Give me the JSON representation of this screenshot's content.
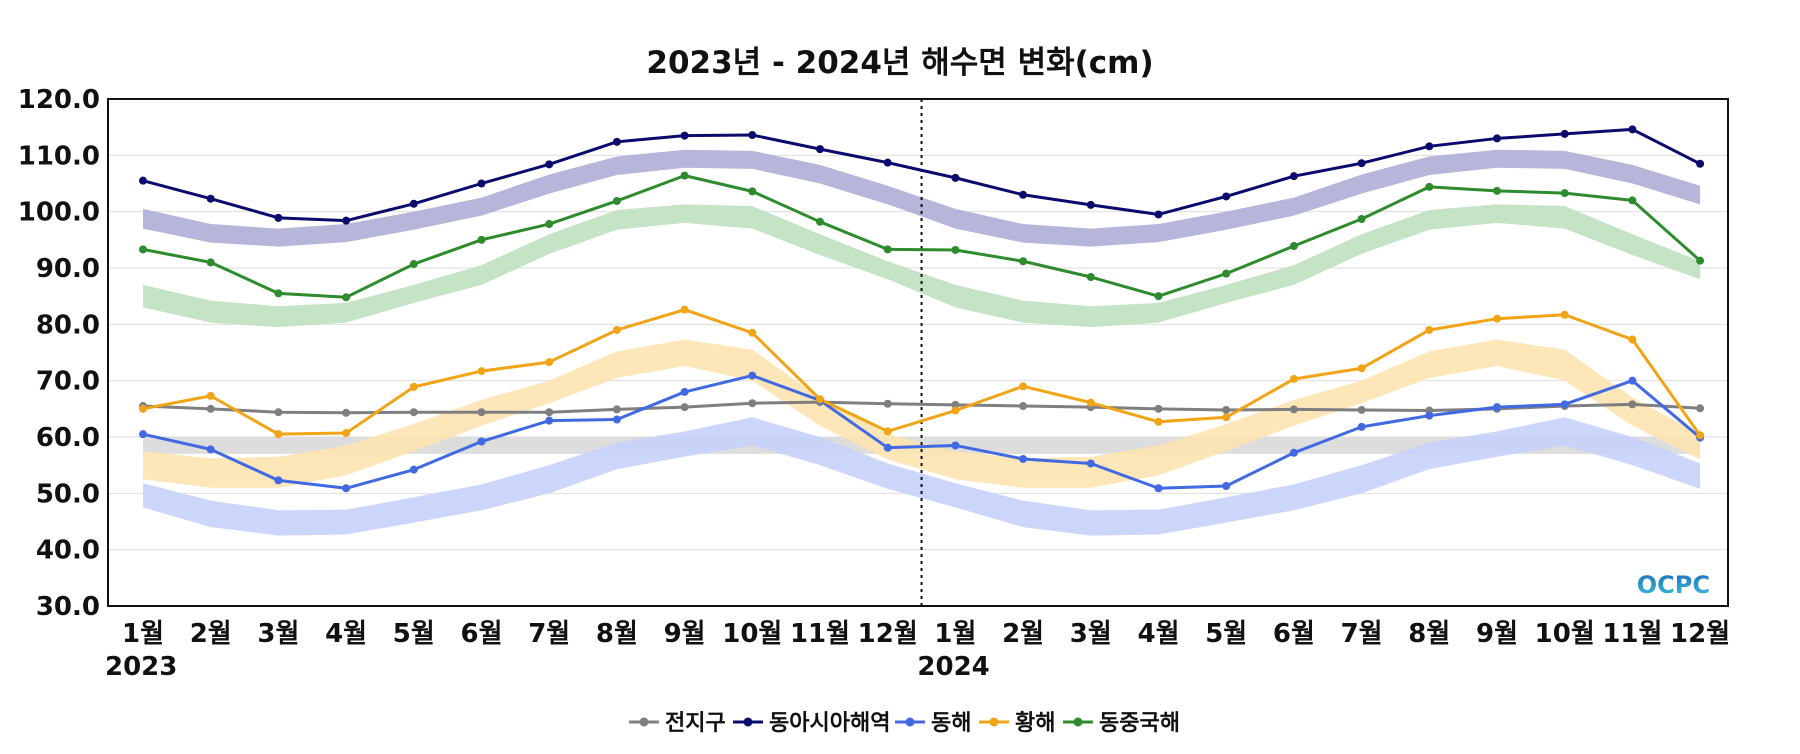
{
  "chart_data": {
    "type": "line",
    "title": "2023년 - 2024년 해수면 변화(cm)",
    "xlabel": "",
    "ylabel": "",
    "ylim": [
      30,
      120
    ],
    "yticks": [
      "30.0",
      "40.0",
      "50.0",
      "60.0",
      "70.0",
      "80.0",
      "90.0",
      "100.0",
      "110.0",
      "120.0"
    ],
    "categories": [
      "1월",
      "2월",
      "3월",
      "4월",
      "5월",
      "6월",
      "7월",
      "8월",
      "9월",
      "10월",
      "11월",
      "12월",
      "1월",
      "2월",
      "3월",
      "4월",
      "5월",
      "6월",
      "7월",
      "8월",
      "9월",
      "10월",
      "11월",
      "12월"
    ],
    "year_labels": [
      {
        "index": 0,
        "text": "2023"
      },
      {
        "index": 12,
        "text": "2024"
      }
    ],
    "divider_after_index": 11,
    "grid": true,
    "legend_position": "bottom-center",
    "series": [
      {
        "name": "전지구",
        "color": "#7f7f7f",
        "values": [
          65.5,
          65.0,
          64.4,
          64.3,
          64.4,
          64.4,
          64.4,
          64.9,
          65.3,
          66.0,
          66.2,
          65.9,
          65.7,
          65.5,
          65.3,
          65.0,
          64.8,
          64.9,
          64.8,
          64.7,
          65.0,
          65.5,
          65.8,
          65.1
        ],
        "band": {
          "color": "#d9d9d9",
          "lower": [
            57.0,
            57.0,
            57.0,
            57.0,
            57.0,
            57.0,
            57.0,
            57.0,
            57.0,
            57.0,
            57.0,
            57.0,
            57.0,
            57.0,
            57.0,
            57.0,
            57.0,
            57.0,
            57.0,
            57.0,
            57.0,
            57.0,
            57.0,
            57.0
          ],
          "upper": [
            60.0,
            60.0,
            60.0,
            60.0,
            60.0,
            60.0,
            60.0,
            60.0,
            60.0,
            60.0,
            60.0,
            60.0,
            60.0,
            60.0,
            60.0,
            60.0,
            60.0,
            60.0,
            60.0,
            60.0,
            60.0,
            60.0,
            60.0,
            60.0
          ]
        }
      },
      {
        "name": "동아시아해역",
        "color": "#0b0b6e",
        "values": [
          105.5,
          102.3,
          98.9,
          98.4,
          101.4,
          105.0,
          108.4,
          112.4,
          113.5,
          113.6,
          111.1,
          108.7,
          106.0,
          103.0,
          101.2,
          99.5,
          102.7,
          106.3,
          108.6,
          111.6,
          113.0,
          113.8,
          114.6,
          108.5
        ],
        "band": {
          "color": "#aeaed6",
          "lower": [
            97.0,
            94.5,
            93.8,
            94.6,
            96.8,
            99.3,
            103.2,
            106.5,
            107.8,
            107.6,
            105.0,
            101.3,
            97.0,
            94.5,
            93.8,
            94.6,
            96.8,
            99.3,
            103.2,
            106.5,
            107.8,
            107.6,
            105.0,
            101.3
          ],
          "upper": [
            100.5,
            97.8,
            97.0,
            97.8,
            100.0,
            102.5,
            106.6,
            109.8,
            111.0,
            110.8,
            108.3,
            104.6,
            100.5,
            97.8,
            97.0,
            97.8,
            100.0,
            102.5,
            106.6,
            109.8,
            111.0,
            110.8,
            108.3,
            104.6
          ]
        }
      },
      {
        "name": "동해",
        "color": "#4169e1",
        "values": [
          60.5,
          57.8,
          52.3,
          50.9,
          54.2,
          59.2,
          62.9,
          63.1,
          68.0,
          70.9,
          66.5,
          58.1,
          58.5,
          56.1,
          55.3,
          50.9,
          51.3,
          57.2,
          61.8,
          63.8,
          65.3,
          65.8,
          70.0,
          59.9
        ],
        "band": {
          "color": "#c7d2fb",
          "lower": [
            47.5,
            44.0,
            42.5,
            42.7,
            44.8,
            47.0,
            50.0,
            54.3,
            56.5,
            58.5,
            55.0,
            50.8,
            47.5,
            44.0,
            42.5,
            42.7,
            44.8,
            47.0,
            50.0,
            54.3,
            56.5,
            58.5,
            55.0,
            50.8
          ],
          "upper": [
            51.8,
            48.7,
            47.0,
            47.1,
            49.3,
            51.6,
            55.0,
            59.0,
            61.0,
            63.5,
            60.0,
            55.3,
            51.8,
            48.7,
            47.0,
            47.1,
            49.3,
            51.6,
            55.0,
            59.0,
            61.0,
            63.5,
            60.0,
            55.3
          ]
        }
      },
      {
        "name": "황해",
        "color": "#f0a416",
        "values": [
          65.0,
          67.3,
          60.5,
          60.7,
          68.9,
          71.7,
          73.3,
          79.0,
          82.6,
          78.5,
          66.7,
          61.0,
          64.7,
          69.0,
          66.1,
          62.7,
          63.5,
          70.3,
          72.2,
          79.0,
          81.0,
          81.7,
          77.3,
          60.3
        ],
        "band": {
          "color": "#fde3b0",
          "lower": [
            52.5,
            51.0,
            51.0,
            53.2,
            57.5,
            62.0,
            66.0,
            70.5,
            72.6,
            70.0,
            62.0,
            56.0,
            52.5,
            51.0,
            51.0,
            53.2,
            57.5,
            62.0,
            66.0,
            70.5,
            72.6,
            70.0,
            62.0,
            56.0
          ],
          "upper": [
            57.5,
            56.2,
            56.5,
            58.5,
            62.3,
            66.6,
            70.0,
            75.2,
            77.3,
            75.5,
            67.0,
            60.5,
            57.5,
            56.2,
            56.5,
            58.5,
            62.3,
            66.6,
            70.0,
            75.2,
            77.3,
            75.5,
            67.0,
            60.5
          ]
        }
      },
      {
        "name": "동중국해",
        "color": "#2e8b2e",
        "values": [
          93.3,
          91.0,
          85.5,
          84.8,
          90.7,
          95.0,
          97.8,
          101.9,
          106.4,
          103.6,
          98.2,
          93.3,
          93.2,
          91.2,
          88.4,
          85.0,
          89.0,
          93.9,
          98.7,
          104.4,
          103.7,
          103.3,
          102.0,
          91.3
        ],
        "band": {
          "color": "#bfe0bf",
          "lower": [
            83.0,
            80.3,
            79.5,
            80.3,
            83.8,
            87.0,
            92.5,
            96.8,
            98.0,
            97.0,
            92.3,
            88.0,
            83.0,
            80.3,
            79.5,
            80.3,
            83.8,
            87.0,
            92.5,
            96.8,
            98.0,
            97.0,
            92.3,
            88.0
          ],
          "upper": [
            87.0,
            84.2,
            83.2,
            83.8,
            87.0,
            90.5,
            96.0,
            100.3,
            101.3,
            101.0,
            96.0,
            91.2,
            87.0,
            84.2,
            83.2,
            83.8,
            87.0,
            90.5,
            96.0,
            100.3,
            101.3,
            101.0,
            96.0,
            91.2
          ]
        }
      }
    ],
    "watermark": "OCPC"
  }
}
